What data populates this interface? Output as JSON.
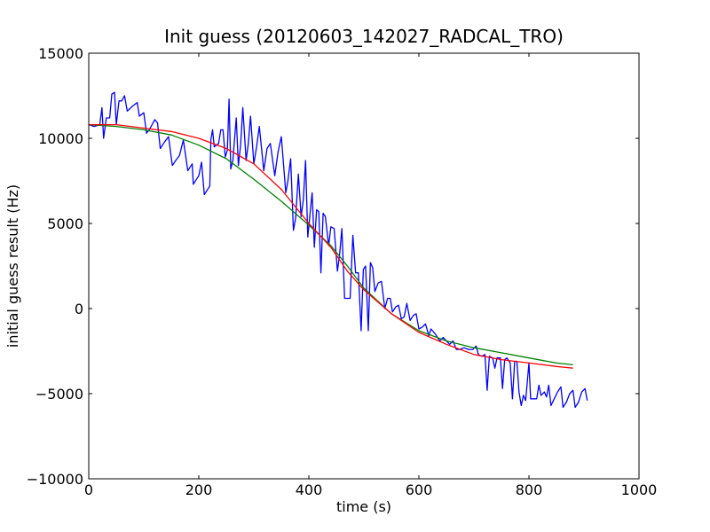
{
  "chart_data": {
    "type": "line",
    "title": "Init guess (20120603_142027_RADCAL_TRO)",
    "xlabel": "time (s)",
    "ylabel": "initial guess result (Hz)",
    "xlim": [
      0,
      1000
    ],
    "ylim": [
      -10000,
      15000
    ],
    "xticks": [
      0,
      200,
      400,
      600,
      800,
      1000
    ],
    "yticks": [
      -10000,
      -5000,
      0,
      5000,
      10000,
      15000
    ],
    "xtick_labels": [
      "0",
      "200",
      "400",
      "600",
      "800",
      "1000"
    ],
    "ytick_labels": [
      "−10000",
      "−5000",
      "0",
      "5000",
      "10000",
      "15000"
    ],
    "grid": false,
    "legend": "none",
    "series": [
      {
        "color": "#0000ff",
        "points": [
          [
            0,
            10800
          ],
          [
            10,
            10700
          ],
          [
            20,
            10800
          ],
          [
            24,
            11800
          ],
          [
            27,
            10000
          ],
          [
            32,
            11200
          ],
          [
            38,
            11200
          ],
          [
            42,
            12600
          ],
          [
            47,
            12700
          ],
          [
            50,
            10800
          ],
          [
            55,
            12200
          ],
          [
            60,
            12200
          ],
          [
            65,
            12500
          ],
          [
            70,
            11600
          ],
          [
            80,
            11900
          ],
          [
            88,
            12100
          ],
          [
            92,
            11300
          ],
          [
            100,
            11500
          ],
          [
            105,
            10300
          ],
          [
            110,
            10500
          ],
          [
            120,
            11100
          ],
          [
            125,
            10900
          ],
          [
            130,
            9400
          ],
          [
            138,
            9800
          ],
          [
            145,
            10100
          ],
          [
            152,
            8400
          ],
          [
            158,
            8700
          ],
          [
            165,
            9000
          ],
          [
            172,
            9900
          ],
          [
            180,
            8100
          ],
          [
            188,
            8500
          ],
          [
            190,
            7300
          ],
          [
            200,
            7800
          ],
          [
            205,
            8600
          ],
          [
            210,
            6700
          ],
          [
            220,
            7200
          ],
          [
            222,
            9900
          ],
          [
            225,
            10500
          ],
          [
            228,
            9500
          ],
          [
            232,
            9600
          ],
          [
            236,
            9700
          ],
          [
            240,
            10500
          ],
          [
            244,
            10500
          ],
          [
            248,
            8900
          ],
          [
            252,
            9300
          ],
          [
            255,
            12300
          ],
          [
            258,
            8200
          ],
          [
            262,
            8700
          ],
          [
            268,
            11200
          ],
          [
            272,
            8400
          ],
          [
            276,
            9600
          ],
          [
            280,
            11800
          ],
          [
            286,
            8700
          ],
          [
            290,
            9700
          ],
          [
            294,
            11300
          ],
          [
            300,
            8500
          ],
          [
            305,
            9500
          ],
          [
            310,
            10700
          ],
          [
            318,
            8100
          ],
          [
            324,
            9400
          ],
          [
            330,
            9700
          ],
          [
            338,
            7800
          ],
          [
            344,
            9200
          ],
          [
            350,
            10100
          ],
          [
            358,
            6800
          ],
          [
            362,
            7500
          ],
          [
            367,
            8800
          ],
          [
            372,
            4600
          ],
          [
            376,
            5300
          ],
          [
            381,
            7900
          ],
          [
            386,
            5400
          ],
          [
            390,
            6400
          ],
          [
            394,
            8700
          ],
          [
            398,
            4200
          ],
          [
            402,
            5500
          ],
          [
            406,
            6800
          ],
          [
            410,
            3600
          ],
          [
            414,
            5800
          ],
          [
            418,
            5700
          ],
          [
            422,
            2100
          ],
          [
            426,
            5600
          ],
          [
            430,
            5400
          ],
          [
            436,
            3700
          ],
          [
            440,
            4800
          ],
          [
            446,
            4700
          ],
          [
            452,
            2200
          ],
          [
            456,
            3200
          ],
          [
            460,
            4700
          ],
          [
            465,
            600
          ],
          [
            470,
            600
          ],
          [
            475,
            600
          ],
          [
            480,
            4300
          ],
          [
            485,
            2100
          ],
          [
            490,
            2100
          ],
          [
            495,
            -1300
          ],
          [
            499,
            2300
          ],
          [
            503,
            2500
          ],
          [
            508,
            -1300
          ],
          [
            512,
            2700
          ],
          [
            516,
            2400
          ],
          [
            520,
            1000
          ],
          [
            526,
            1500
          ],
          [
            532,
            1600
          ],
          [
            538,
            0
          ],
          [
            543,
            600
          ],
          [
            548,
            600
          ],
          [
            552,
            -200
          ],
          [
            558,
            100
          ],
          [
            563,
            200
          ],
          [
            568,
            -600
          ],
          [
            573,
            -500
          ],
          [
            578,
            300
          ],
          [
            584,
            -700
          ],
          [
            590,
            -400
          ],
          [
            595,
            -300
          ],
          [
            600,
            -1200
          ],
          [
            606,
            -1100
          ],
          [
            612,
            -900
          ],
          [
            618,
            -1600
          ],
          [
            622,
            -1200
          ],
          [
            630,
            -1500
          ],
          [
            638,
            -1900
          ],
          [
            644,
            -1700
          ],
          [
            650,
            -1900
          ],
          [
            656,
            -2100
          ],
          [
            662,
            -1900
          ],
          [
            668,
            -2400
          ],
          [
            674,
            -2400
          ],
          [
            682,
            -2300
          ],
          [
            690,
            -2400
          ],
          [
            698,
            -2400
          ],
          [
            704,
            -2200
          ],
          [
            708,
            -2700
          ],
          [
            714,
            -2800
          ],
          [
            720,
            -2700
          ],
          [
            724,
            -4800
          ],
          [
            728,
            -2800
          ],
          [
            734,
            -2900
          ],
          [
            738,
            -3500
          ],
          [
            742,
            -2900
          ],
          [
            748,
            -2900
          ],
          [
            752,
            -4700
          ],
          [
            756,
            -3000
          ],
          [
            760,
            -2900
          ],
          [
            766,
            -3200
          ],
          [
            770,
            -5300
          ],
          [
            774,
            -3100
          ],
          [
            778,
            -3100
          ],
          [
            782,
            -4900
          ],
          [
            786,
            -5700
          ],
          [
            790,
            -5100
          ],
          [
            794,
            -5400
          ],
          [
            800,
            -3200
          ],
          [
            803,
            -5300
          ],
          [
            808,
            -5300
          ],
          [
            814,
            -5300
          ],
          [
            818,
            -4500
          ],
          [
            822,
            -5100
          ],
          [
            828,
            -4900
          ],
          [
            832,
            -5200
          ],
          [
            836,
            -4500
          ],
          [
            840,
            -5700
          ],
          [
            846,
            -5300
          ],
          [
            852,
            -4900
          ],
          [
            858,
            -4600
          ],
          [
            862,
            -5800
          ],
          [
            868,
            -5500
          ],
          [
            874,
            -5000
          ],
          [
            880,
            -4800
          ],
          [
            884,
            -5800
          ],
          [
            890,
            -5500
          ],
          [
            896,
            -4900
          ],
          [
            902,
            -4700
          ],
          [
            906,
            -5400
          ]
        ]
      },
      {
        "color": "#008000",
        "points": [
          [
            0,
            10800
          ],
          [
            50,
            10700
          ],
          [
            100,
            10500
          ],
          [
            150,
            10200
          ],
          [
            200,
            9600
          ],
          [
            250,
            8800
          ],
          [
            300,
            7600
          ],
          [
            350,
            6300
          ],
          [
            400,
            4900
          ],
          [
            440,
            3700
          ],
          [
            470,
            2500
          ],
          [
            500,
            1200
          ],
          [
            550,
            -300
          ],
          [
            600,
            -1300
          ],
          [
            650,
            -1900
          ],
          [
            700,
            -2300
          ],
          [
            750,
            -2600
          ],
          [
            800,
            -2900
          ],
          [
            850,
            -3200
          ],
          [
            880,
            -3300
          ]
        ]
      },
      {
        "color": "#ff0000",
        "points": [
          [
            0,
            10800
          ],
          [
            50,
            10800
          ],
          [
            100,
            10600
          ],
          [
            150,
            10400
          ],
          [
            200,
            10000
          ],
          [
            250,
            9400
          ],
          [
            300,
            8500
          ],
          [
            350,
            7000
          ],
          [
            400,
            5000
          ],
          [
            440,
            3600
          ],
          [
            470,
            2200
          ],
          [
            500,
            1100
          ],
          [
            550,
            -300
          ],
          [
            600,
            -1400
          ],
          [
            650,
            -2100
          ],
          [
            700,
            -2700
          ],
          [
            750,
            -3000
          ],
          [
            800,
            -3200
          ],
          [
            850,
            -3400
          ],
          [
            880,
            -3500
          ]
        ]
      }
    ]
  }
}
